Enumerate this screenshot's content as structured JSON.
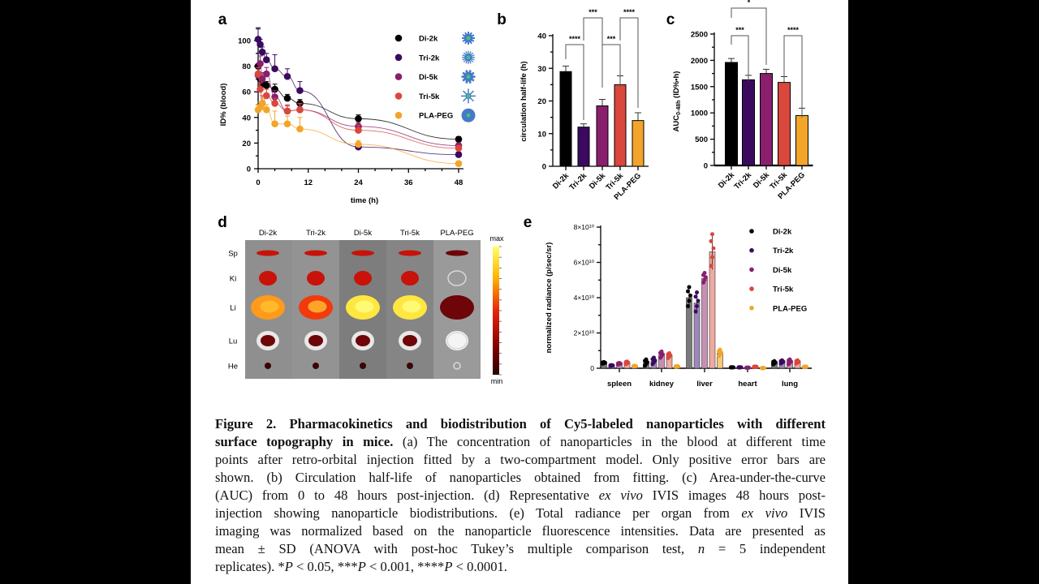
{
  "groups": [
    "Di-2k",
    "Tri-2k",
    "Di-5k",
    "Tri-5k",
    "PLA-PEG"
  ],
  "colors": {
    "Di-2k": "#000000",
    "Tri-2k": "#3b0a5f",
    "Di-5k": "#8a1f6e",
    "Tri-5k": "#d9473d",
    "PLA-PEG": "#f2a52a"
  },
  "light_colors": {
    "Di-2k": "#7a7a7a",
    "Tri-2k": "#9d88ba",
    "Di-5k": "#c690b2",
    "Tri-5k": "#eeaa9f",
    "PLA-PEG": "#f5c97a"
  },
  "topography_icons": [
    "di-2k-particle-icon",
    "tri-2k-particle-icon",
    "di-5k-particle-icon",
    "tri-5k-particle-icon",
    "pla-peg-particle-icon"
  ],
  "chart_data": [
    {
      "panel": "a",
      "type": "scatter",
      "xlabel": "time (h)",
      "ylabel": "ID% (blood)",
      "xlim": [
        0,
        48
      ],
      "ylim": [
        0,
        100
      ],
      "xticks": [
        0,
        12,
        24,
        36,
        48
      ],
      "yticks": [
        0,
        20,
        40,
        60,
        80,
        100
      ],
      "legend_placement": "top-right",
      "x": [
        0,
        0.5,
        1,
        2,
        4,
        7,
        10,
        24,
        48
      ],
      "series": [
        {
          "name": "Di-2k",
          "values": [
            80,
            70,
            66,
            65,
            62,
            55,
            51,
            39,
            23
          ],
          "err": [
            30,
            3,
            3,
            3,
            4,
            3,
            3,
            3,
            2
          ]
        },
        {
          "name": "Tri-2k",
          "values": [
            101,
            97,
            91,
            85,
            78,
            72,
            61,
            17,
            11
          ],
          "err": [
            8,
            4,
            4,
            5,
            11,
            6,
            7,
            3,
            2
          ]
        },
        {
          "name": "Di-5k",
          "values": [
            73,
            82,
            70,
            74,
            56,
            45,
            46,
            33,
            18
          ],
          "err": [
            6,
            6,
            5,
            5,
            5,
            4,
            4,
            3,
            2
          ]
        },
        {
          "name": "Tri-5k",
          "values": [
            74,
            62,
            51,
            57,
            51,
            45,
            46,
            30,
            16
          ],
          "err": [
            5,
            5,
            6,
            5,
            4,
            5,
            5,
            4,
            2
          ]
        },
        {
          "name": "PLA-PEG",
          "values": [
            46,
            48,
            51,
            46,
            35,
            35,
            31,
            19,
            4
          ],
          "err": [
            4,
            4,
            4,
            4,
            10,
            6,
            9,
            3,
            1
          ]
        }
      ]
    },
    {
      "panel": "b",
      "type": "bar",
      "ylabel": "circulation half-life (h)",
      "ylim": [
        0,
        40
      ],
      "yticks": [
        0,
        10,
        20,
        30,
        40
      ],
      "categories": [
        "Di-2k",
        "Tri-2k",
        "Di-5k",
        "Tri-5k",
        "PLA-PEG"
      ],
      "values": [
        29,
        12,
        18.5,
        25,
        14
      ],
      "err": [
        1.7,
        1,
        2,
        2.7,
        2.4
      ],
      "significance": [
        {
          "from": "Di-2k",
          "to": "Tri-2k",
          "label": "****"
        },
        {
          "from": "Tri-2k",
          "to": "Di-5k",
          "label": "***"
        },
        {
          "from": "Di-5k",
          "to": "Tri-5k",
          "label": "***"
        },
        {
          "from": "Tri-5k",
          "to": "PLA-PEG",
          "label": "****"
        }
      ]
    },
    {
      "panel": "c",
      "type": "bar",
      "ylabel_main": "AUC",
      "ylabel_sub": "0-48h",
      "ylabel_unit": " (ID%•h)",
      "ylim": [
        0,
        2500
      ],
      "yticks": [
        0,
        500,
        1000,
        1500,
        2000,
        2500
      ],
      "categories": [
        "Di-2k",
        "Tri-2k",
        "Di-5k",
        "Tri-5k",
        "PLA-PEG"
      ],
      "values": [
        1960,
        1630,
        1750,
        1580,
        950
      ],
      "err": [
        75,
        85,
        80,
        110,
        140
      ],
      "significance": [
        {
          "from": "Di-2k",
          "to": "Di-5k",
          "label": "*"
        },
        {
          "from": "Di-2k",
          "to": "Tri-2k",
          "label": "***"
        },
        {
          "from": "Tri-5k",
          "to": "PLA-PEG",
          "label": "****"
        }
      ]
    },
    {
      "panel": "e",
      "type": "bar",
      "ylabel": "normalized radiance (p/sec/sr)",
      "ylim": [
        0,
        80000000000.0
      ],
      "yticks": [
        0,
        20000000000.0,
        40000000000.0,
        60000000000.0,
        80000000000.0
      ],
      "ytick_labels": [
        "0",
        "2×10¹⁰",
        "4×10¹⁰",
        "6×10¹⁰",
        "8×10¹⁰"
      ],
      "categories": [
        "spleen",
        "kidney",
        "liver",
        "heart",
        "lung"
      ],
      "legend_placement": "top-right",
      "series": [
        {
          "name": "Di-2k",
          "values": [
            3000000000.0,
            3000000000.0,
            40000000000.0,
            500000000.0,
            3000000000.0
          ],
          "err": [
            500000000.0,
            2000000000.0,
            6000000000.0,
            100000000.0,
            1000000000.0
          ]
        },
        {
          "name": "Tri-2k",
          "values": [
            1500000000.0,
            4000000000.0,
            37000000000.0,
            500000000.0,
            3500000000.0
          ],
          "err": [
            300000000.0,
            2000000000.0,
            6000000000.0,
            100000000.0,
            1000000000.0
          ]
        },
        {
          "name": "Di-5k",
          "values": [
            2500000000.0,
            7500000000.0,
            51000000000.0,
            300000000.0,
            3500000000.0
          ],
          "err": [
            500000000.0,
            2000000000.0,
            3000000000.0,
            100000000.0,
            1500000000.0
          ]
        },
        {
          "name": "Tri-5k",
          "values": [
            3000000000.0,
            7000000000.0,
            66000000000.0,
            800000000.0,
            3500000000.0
          ],
          "err": [
            800000000.0,
            1500000000.0,
            10000000000.0,
            200000000.0,
            1000000000.0
          ]
        },
        {
          "name": "PLA-PEG",
          "values": [
            1200000000.0,
            1000000000.0,
            8500000000.0,
            100000000.0,
            800000000.0
          ],
          "err": [
            200000000.0,
            200000000.0,
            2000000000.0,
            100000000.0,
            200000000.0
          ]
        }
      ]
    }
  ],
  "panel_d": {
    "columns": [
      "Di-2k",
      "Tri-2k",
      "Di-5k",
      "Tri-5k",
      "PLA-PEG"
    ],
    "rows": [
      "Sp",
      "Ki",
      "Li",
      "Lu",
      "He"
    ],
    "colorbar_max": "max",
    "colorbar_min": "min",
    "signal": [
      [
        0.45,
        0.3,
        0.35,
        0.4,
        0.25
      ],
      [
        0.4,
        0.4,
        0.4,
        0.4,
        0.0
      ],
      [
        0.75,
        0.6,
        0.9,
        0.95,
        0.12
      ],
      [
        0.15,
        0.15,
        0.2,
        0.15,
        0.0
      ],
      [
        0.05,
        0.05,
        0.1,
        0.1,
        0.0
      ]
    ]
  },
  "panel_labels": [
    "a",
    "b",
    "c",
    "d",
    "e"
  ],
  "caption": [
    [
      {
        "t": "Figure 2. Pharmacokinetics and biodistribution of Cy5-labeled nanoparticles with different",
        "s": "b"
      }
    ],
    [
      {
        "t": "surface topography in mice.",
        "s": "b"
      },
      {
        "t": " (a) The concentration of nanoparticles in the blood at different time",
        "s": ""
      }
    ],
    [
      {
        "t": "points after retro-orbital injection fitted by a two-compartment model. Only positive error bars are",
        "s": ""
      }
    ],
    [
      {
        "t": "shown. (b) Circulation half-life of nanoparticles obtained from fitting. (c) Area-under-the-curve",
        "s": ""
      }
    ],
    [
      {
        "t": "(AUC) from 0 to 48 hours post-injection. (d) Representative ",
        "s": ""
      },
      {
        "t": "ex vivo",
        "s": "i"
      },
      {
        "t": " IVIS images 48 hours post-",
        "s": ""
      }
    ],
    [
      {
        "t": "injection showing nanoparticle biodistributions. (e) Total radiance per organ from ",
        "s": ""
      },
      {
        "t": "ex vivo",
        "s": "i"
      },
      {
        "t": " IVIS",
        "s": ""
      }
    ],
    [
      {
        "t": "imaging was normalized based on the nanoparticle fluorescence intensities. Data are presented as",
        "s": ""
      }
    ],
    [
      {
        "t": "mean ± SD (ANOVA with post-hoc Tukey’s multiple comparison test, ",
        "s": ""
      },
      {
        "t": "n",
        "s": "i"
      },
      {
        "t": " = 5 independent",
        "s": ""
      }
    ],
    [
      {
        "t": "replicates). *",
        "s": ""
      },
      {
        "t": "P",
        "s": "i"
      },
      {
        "t": " < 0.05, ***",
        "s": ""
      },
      {
        "t": "P",
        "s": "i"
      },
      {
        "t": " < 0.001, ****",
        "s": ""
      },
      {
        "t": "P",
        "s": "i"
      },
      {
        "t": " < 0.0001.",
        "s": ""
      }
    ]
  ]
}
